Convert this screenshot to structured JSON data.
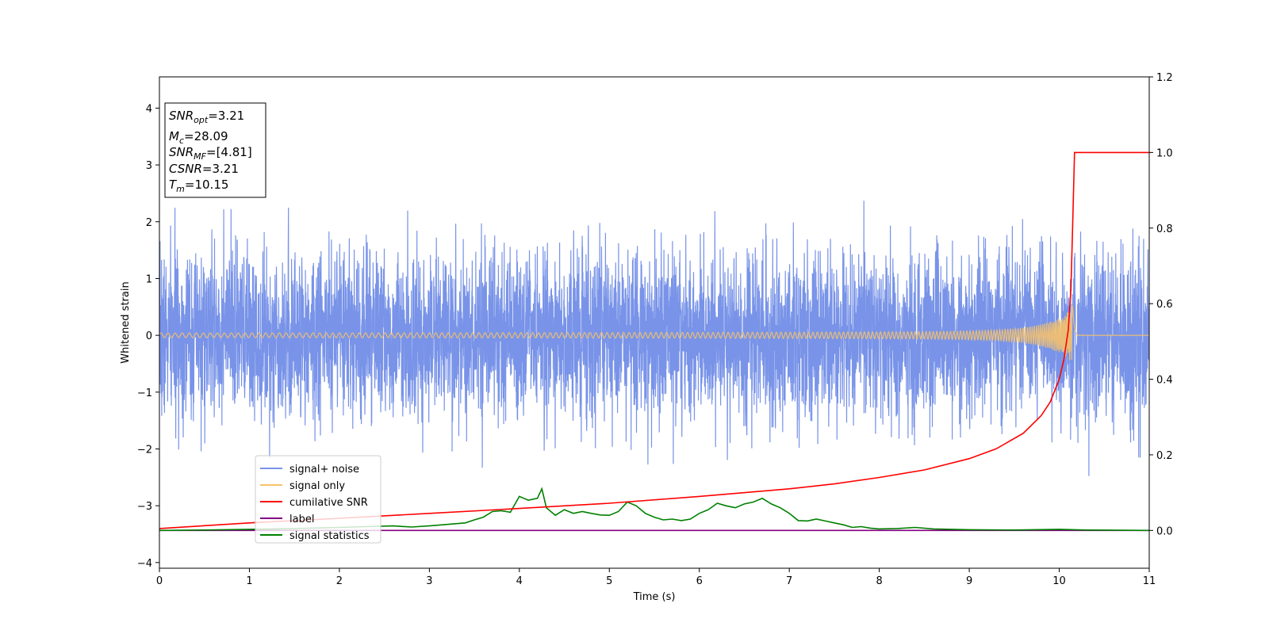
{
  "chart_data": {
    "type": "line",
    "xlabel": "Time (s)",
    "ylabel": "Whitened strain",
    "xlim": [
      0,
      11
    ],
    "ylim": [
      -4.1,
      4.55
    ],
    "y2lim": [
      -0.1,
      1.2
    ],
    "x_ticks": [
      "0",
      "1",
      "2",
      "3",
      "4",
      "5",
      "6",
      "7",
      "8",
      "9",
      "10",
      "11"
    ],
    "y_ticks": [
      "−4",
      "−3",
      "−2",
      "−1",
      "0",
      "1",
      "2",
      "3",
      "4"
    ],
    "y2_ticks": [
      "0.0",
      "0.2",
      "0.4",
      "0.6",
      "0.8",
      "1.0",
      "1.2"
    ],
    "info_box": [
      {
        "name": "SNR",
        "sub": "opt",
        "value": "=3.21"
      },
      {
        "name": "M",
        "sub": "c",
        "value": "=28.09"
      },
      {
        "name": "SNR",
        "sub": "MF",
        "value": "=[4.81]"
      },
      {
        "name": "CSNR",
        "sub": "",
        "value": "=3.21"
      },
      {
        "name": "T",
        "sub": "m",
        "value": "=10.15"
      }
    ],
    "legend": {
      "placement": "lower-left",
      "entries": [
        {
          "label": "signal+ noise",
          "color": "#7893e8"
        },
        {
          "label": "signal only",
          "color": "#f5c26b"
        },
        {
          "label": "cumilative SNR",
          "color": "#ff0000"
        },
        {
          "label": "label",
          "color": "#800080"
        },
        {
          "label": "signal statistics",
          "color": "#008000"
        }
      ]
    },
    "series": [
      {
        "name": "signal+ noise",
        "axis": "left",
        "color": "#7893e8",
        "noise_std": 0.72,
        "envelope": [
          1.4,
          2.8
        ]
      },
      {
        "name": "signal only",
        "axis": "left",
        "color": "#f5c26b",
        "merger_time": 10.15,
        "peak_amplitude": 0.62
      },
      {
        "name": "cumilative SNR",
        "axis": "right",
        "color": "#ff0000",
        "x": [
          0,
          1,
          2,
          3,
          4,
          5,
          6,
          7,
          7.5,
          8,
          8.5,
          9,
          9.3,
          9.6,
          9.8,
          9.9,
          10.0,
          10.05,
          10.1,
          10.13,
          10.15,
          10.17,
          11
        ],
        "y": [
          0.005,
          0.02,
          0.032,
          0.045,
          0.058,
          0.072,
          0.09,
          0.11,
          0.123,
          0.14,
          0.16,
          0.19,
          0.216,
          0.257,
          0.304,
          0.34,
          0.4,
          0.45,
          0.53,
          0.64,
          0.82,
          1.0,
          1.0
        ]
      },
      {
        "name": "label",
        "axis": "right",
        "color": "#800080",
        "x": [
          0,
          11
        ],
        "y": [
          0,
          0
        ]
      },
      {
        "name": "signal statistics",
        "axis": "right",
        "color": "#008000",
        "x": [
          0,
          0.5,
          1.0,
          1.5,
          2.0,
          2.3,
          2.6,
          2.8,
          3.0,
          3.2,
          3.4,
          3.5,
          3.6,
          3.7,
          3.8,
          3.9,
          4.0,
          4.1,
          4.2,
          4.25,
          4.3,
          4.4,
          4.5,
          4.6,
          4.7,
          4.8,
          4.9,
          5.0,
          5.1,
          5.2,
          5.3,
          5.4,
          5.5,
          5.6,
          5.7,
          5.8,
          5.9,
          6.0,
          6.1,
          6.2,
          6.3,
          6.4,
          6.5,
          6.6,
          6.7,
          6.8,
          6.9,
          7.0,
          7.1,
          7.2,
          7.3,
          7.4,
          7.5,
          7.6,
          7.7,
          7.8,
          7.9,
          8.0,
          8.2,
          8.4,
          8.6,
          9.0,
          9.5,
          10.0,
          10.3,
          11.0
        ],
        "y": [
          0.0,
          0.001,
          0.003,
          0.005,
          0.008,
          0.01,
          0.012,
          0.009,
          0.012,
          0.016,
          0.02,
          0.028,
          0.035,
          0.05,
          0.052,
          0.048,
          0.09,
          0.08,
          0.085,
          0.11,
          0.06,
          0.04,
          0.055,
          0.045,
          0.05,
          0.045,
          0.041,
          0.04,
          0.05,
          0.075,
          0.065,
          0.045,
          0.035,
          0.028,
          0.03,
          0.026,
          0.03,
          0.045,
          0.055,
          0.072,
          0.065,
          0.06,
          0.07,
          0.075,
          0.085,
          0.07,
          0.06,
          0.045,
          0.026,
          0.025,
          0.03,
          0.025,
          0.02,
          0.015,
          0.008,
          0.01,
          0.006,
          0.004,
          0.005,
          0.008,
          0.004,
          0.002,
          0.001,
          0.003,
          0.001,
          0.0
        ]
      }
    ]
  }
}
